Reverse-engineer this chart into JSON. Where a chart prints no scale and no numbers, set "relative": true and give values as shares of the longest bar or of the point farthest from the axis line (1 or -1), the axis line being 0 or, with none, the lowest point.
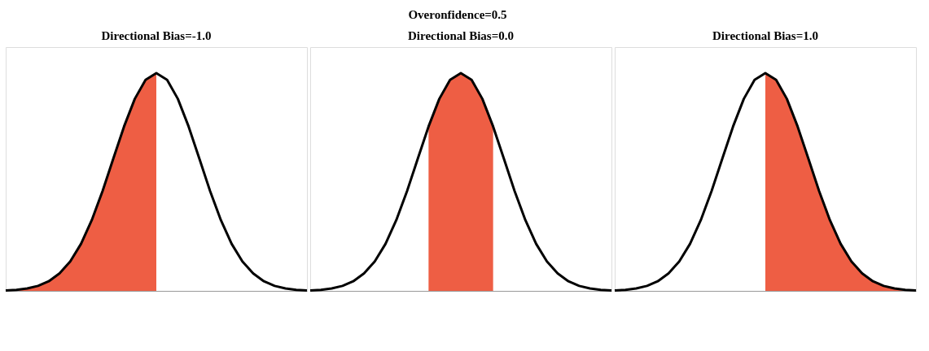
{
  "chart_data": [
    {
      "type": "other",
      "title": "Overonfidence=0.5"
    },
    {
      "type": "line",
      "title": "Directional Bias=-1.0",
      "relative": true,
      "categories": [
        null,
        null,
        null,
        null,
        null,
        null,
        null,
        null,
        null,
        null,
        null,
        null,
        null,
        null,
        null,
        null,
        null,
        null,
        null,
        null,
        null,
        null,
        null,
        null,
        null,
        null,
        null,
        null,
        null
      ],
      "series": [
        {
          "type": "area",
          "color": "#ee5e44",
          "values": [
            0.002,
            0.005,
            0.011,
            0.023,
            0.044,
            0.08,
            0.135,
            0.216,
            0.325,
            0.458,
            0.607,
            0.755,
            0.882,
            0.969,
            1,
            null,
            null,
            null,
            null,
            null,
            null,
            null,
            null,
            null,
            null,
            null,
            null,
            null,
            null
          ]
        },
        {
          "type": "line",
          "color": "#000000",
          "values": [
            0.002,
            0.005,
            0.011,
            0.023,
            0.044,
            0.08,
            0.135,
            0.216,
            0.325,
            0.458,
            0.607,
            0.755,
            0.882,
            0.969,
            1,
            0.969,
            0.882,
            0.755,
            0.607,
            0.458,
            0.325,
            0.216,
            0.135,
            0.08,
            0.044,
            0.023,
            0.011,
            0.005,
            0.002
          ]
        }
      ]
    },
    {
      "type": "line",
      "title": "Directional Bias=0.0",
      "relative": true,
      "categories": [
        null,
        null,
        null,
        null,
        null,
        null,
        null,
        null,
        null,
        null,
        null,
        null,
        null,
        null,
        null,
        null,
        null,
        null,
        null,
        null,
        null,
        null,
        null,
        null,
        null,
        null,
        null,
        null,
        null
      ],
      "series": [
        {
          "type": "area",
          "color": "#ee5e44",
          "values": [
            null,
            null,
            null,
            null,
            null,
            null,
            null,
            null,
            null,
            null,
            null,
            0.755,
            0.882,
            0.969,
            1,
            0.969,
            0.882,
            0.755,
            null,
            null,
            null,
            null,
            null,
            null,
            null,
            null,
            null,
            null,
            null
          ]
        },
        {
          "type": "line",
          "color": "#000000",
          "values": [
            0.002,
            0.005,
            0.011,
            0.023,
            0.044,
            0.08,
            0.135,
            0.216,
            0.325,
            0.458,
            0.607,
            0.755,
            0.882,
            0.969,
            1,
            0.969,
            0.882,
            0.755,
            0.607,
            0.458,
            0.325,
            0.216,
            0.135,
            0.08,
            0.044,
            0.023,
            0.011,
            0.005,
            0.002
          ]
        }
      ]
    },
    {
      "type": "line",
      "title": "Directional Bias=1.0",
      "relative": true,
      "categories": [
        null,
        null,
        null,
        null,
        null,
        null,
        null,
        null,
        null,
        null,
        null,
        null,
        null,
        null,
        null,
        null,
        null,
        null,
        null,
        null,
        null,
        null,
        null,
        null,
        null,
        null,
        null,
        null,
        null
      ],
      "series": [
        {
          "type": "area",
          "color": "#ee5e44",
          "values": [
            null,
            null,
            null,
            null,
            null,
            null,
            null,
            null,
            null,
            null,
            null,
            null,
            null,
            null,
            1,
            0.969,
            0.882,
            0.755,
            0.607,
            0.458,
            0.325,
            0.216,
            0.135,
            0.08,
            0.044,
            0.023,
            0.011,
            0.005,
            0.002
          ]
        },
        {
          "type": "line",
          "color": "#000000",
          "values": [
            0.002,
            0.005,
            0.011,
            0.023,
            0.044,
            0.08,
            0.135,
            0.216,
            0.325,
            0.458,
            0.607,
            0.755,
            0.882,
            0.969,
            1,
            0.969,
            0.882,
            0.755,
            0.607,
            0.458,
            0.325,
            0.216,
            0.135,
            0.08,
            0.044,
            0.023,
            0.011,
            0.005,
            0.002
          ]
        }
      ]
    }
  ]
}
